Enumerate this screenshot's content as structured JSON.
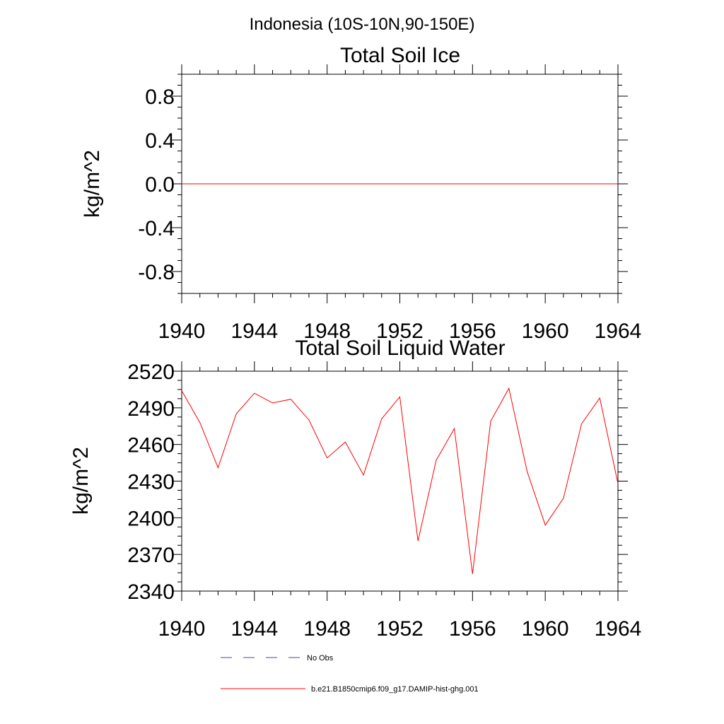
{
  "figure": {
    "suptitle": "Indonesia (10S-10N,90-150E)"
  },
  "colors": {
    "model_line": "#ff0000",
    "obs_line": "#4a4aa0",
    "axis": "#000000"
  },
  "chart_data": [
    {
      "type": "line",
      "title": "Total Soil Ice",
      "xlabel": "",
      "ylabel": "kg/m^2",
      "xlim": [
        1940,
        1964
      ],
      "ylim": [
        -1,
        1
      ],
      "x_ticks": [
        1940,
        1944,
        1948,
        1952,
        1956,
        1960,
        1964
      ],
      "y_ticks": [
        -0.8,
        -0.4,
        0.0,
        0.4,
        0.8
      ],
      "x_tick_labels": [
        "1940",
        "1944",
        "1948",
        "1952",
        "1956",
        "1960",
        "1964"
      ],
      "y_tick_labels": [
        "-0.8",
        "-0.4",
        "0.0",
        "0.4",
        "0.8"
      ],
      "x": [
        1940,
        1941,
        1942,
        1943,
        1944,
        1945,
        1946,
        1947,
        1948,
        1949,
        1950,
        1951,
        1952,
        1953,
        1954,
        1955,
        1956,
        1957,
        1958,
        1959,
        1960,
        1961,
        1962,
        1963,
        1964
      ],
      "series": [
        {
          "name": "b.e21.B1850cmip6.f09_g17.DAMIP-hist-ghg.001",
          "values": [
            0,
            0,
            0,
            0,
            0,
            0,
            0,
            0,
            0,
            0,
            0,
            0,
            0,
            0,
            0,
            0,
            0,
            0,
            0,
            0,
            0,
            0,
            0,
            0,
            0
          ]
        }
      ]
    },
    {
      "type": "line",
      "title": "Total Soil Liquid Water",
      "xlabel": "",
      "ylabel": "kg/m^2",
      "xlim": [
        1940,
        1964
      ],
      "ylim": [
        2340,
        2520
      ],
      "x_ticks": [
        1940,
        1944,
        1948,
        1952,
        1956,
        1960,
        1964
      ],
      "y_ticks": [
        2340,
        2370,
        2400,
        2430,
        2460,
        2490,
        2520
      ],
      "x_tick_labels": [
        "1940",
        "1944",
        "1948",
        "1952",
        "1956",
        "1960",
        "1964"
      ],
      "y_tick_labels": [
        "2340",
        "2370",
        "2400",
        "2430",
        "2460",
        "2490",
        "2520"
      ],
      "x": [
        1940,
        1941,
        1942,
        1943,
        1944,
        1945,
        1946,
        1947,
        1948,
        1949,
        1950,
        1951,
        1952,
        1953,
        1954,
        1955,
        1956,
        1957,
        1958,
        1959,
        1960,
        1961,
        1962,
        1963,
        1964
      ],
      "series": [
        {
          "name": "b.e21.B1850cmip6.f09_g17.DAMIP-hist-ghg.001",
          "values": [
            2504,
            2478,
            2441,
            2485,
            2502,
            2494,
            2497,
            2480,
            2449,
            2462,
            2435,
            2481,
            2499,
            2381,
            2447,
            2473,
            2354,
            2479,
            2506,
            2438,
            2394,
            2416,
            2477,
            2498,
            2428
          ]
        }
      ]
    }
  ],
  "legend": {
    "placement": "bottom",
    "items": [
      {
        "label": "No Obs",
        "style": "dashed"
      },
      {
        "label": "b.e21.B1850cmip6.f09_g17.DAMIP-hist-ghg.001",
        "style": "solid"
      }
    ]
  }
}
